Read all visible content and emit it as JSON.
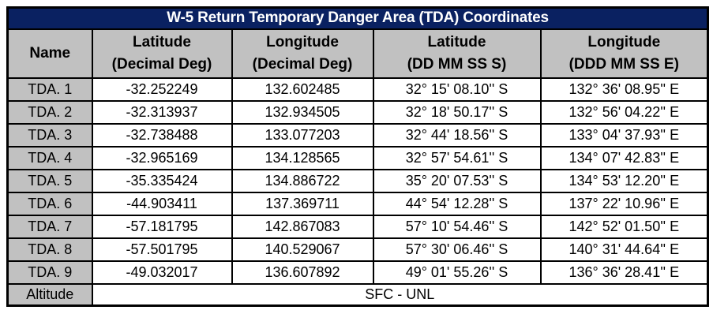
{
  "title": "W-5 Return Temporary Danger Area (TDA) Coordinates",
  "colors": {
    "title_bg": "#0A2161",
    "title_text": "#FFFFFF",
    "header_bg": "#C1C1C1",
    "name_col_bg": "#C1C1C1",
    "cell_bg": "#FFFFFF",
    "border": "#000000"
  },
  "table": {
    "headers": [
      {
        "top": "Name",
        "bottom": ""
      },
      {
        "top": "Latitude",
        "bottom": "(Decimal Deg)"
      },
      {
        "top": "Longitude",
        "bottom": "(Decimal Deg)"
      },
      {
        "top": "Latitude",
        "bottom": "(DD MM SS S)"
      },
      {
        "top": "Longitude",
        "bottom": "(DDD MM SS E)"
      }
    ],
    "rows": [
      {
        "name": "TDA. 1",
        "lat_dec": "-32.252249",
        "lon_dec": "132.602485",
        "lat_dms": "32° 15' 08.10'' S",
        "lon_dms": "132° 36' 08.95'' E"
      },
      {
        "name": "TDA. 2",
        "lat_dec": "-32.313937",
        "lon_dec": "132.934505",
        "lat_dms": "32° 18' 50.17'' S",
        "lon_dms": "132° 56' 04.22'' E"
      },
      {
        "name": "TDA. 3",
        "lat_dec": "-32.738488",
        "lon_dec": "133.077203",
        "lat_dms": "32° 44' 18.56'' S",
        "lon_dms": "133° 04' 37.93'' E"
      },
      {
        "name": "TDA. 4",
        "lat_dec": "-32.965169",
        "lon_dec": "134.128565",
        "lat_dms": "32° 57' 54.61'' S",
        "lon_dms": "134° 07' 42.83'' E"
      },
      {
        "name": "TDA. 5",
        "lat_dec": "-35.335424",
        "lon_dec": "134.886722",
        "lat_dms": "35° 20' 07.53'' S",
        "lon_dms": "134° 53' 12.20'' E"
      },
      {
        "name": "TDA. 6",
        "lat_dec": "-44.903411",
        "lon_dec": "137.369711",
        "lat_dms": "44° 54' 12.28'' S",
        "lon_dms": "137° 22' 10.96'' E"
      },
      {
        "name": "TDA. 7",
        "lat_dec": "-57.181795",
        "lon_dec": "142.867083",
        "lat_dms": "57° 10' 54.46'' S",
        "lon_dms": "142° 52' 01.50'' E"
      },
      {
        "name": "TDA. 8",
        "lat_dec": "-57.501795",
        "lon_dec": "140.529067",
        "lat_dms": "57° 30' 06.46'' S",
        "lon_dms": "140° 31' 44.64'' E"
      },
      {
        "name": "TDA. 9",
        "lat_dec": "-49.032017",
        "lon_dec": "136.607892",
        "lat_dms": "49° 01' 55.26'' S",
        "lon_dms": "136° 36' 28.41'' E"
      }
    ],
    "altitude": {
      "label": "Altitude",
      "value": "SFC - UNL"
    }
  }
}
